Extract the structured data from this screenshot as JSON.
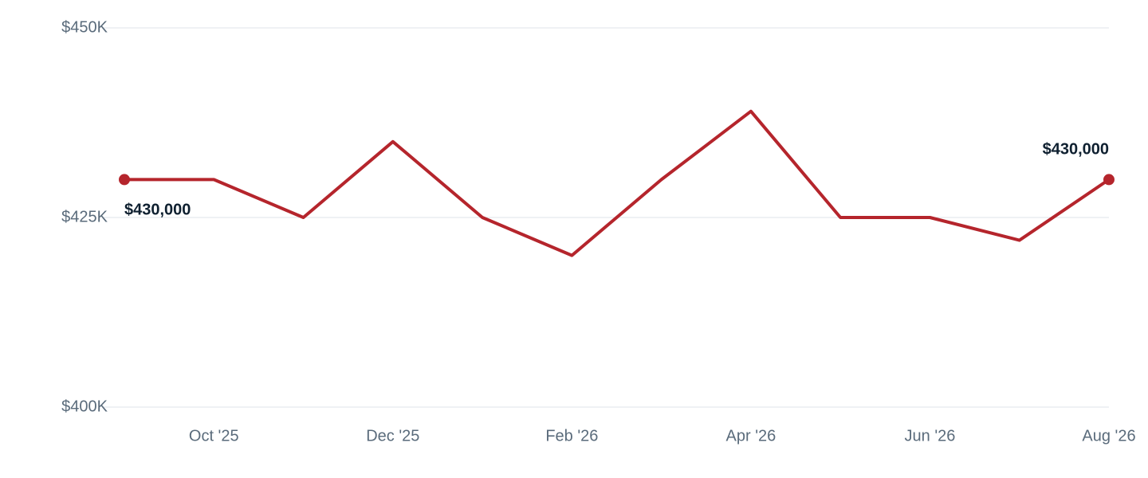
{
  "chart_data": {
    "type": "line",
    "categories": [
      null,
      "Oct '25",
      null,
      "Dec '25",
      null,
      "Feb '26",
      null,
      "Apr '26",
      null,
      "Jun '26",
      null,
      "Aug '26"
    ],
    "series": [
      {
        "name": null,
        "color": "#b5252c",
        "values": [
          430000,
          430000,
          425000,
          435000,
          425000,
          420000,
          430000,
          439000,
          425000,
          425000,
          422000,
          430000
        ],
        "value_labels": [
          "$430,000",
          null,
          null,
          null,
          null,
          null,
          null,
          null,
          null,
          null,
          null,
          "$430,000"
        ]
      }
    ],
    "ylim": [
      400000,
      450000
    ],
    "yticks": [
      {
        "value": 400000,
        "label": "$400K"
      },
      {
        "value": 425000,
        "label": "$425K"
      },
      {
        "value": 450000,
        "label": "$450K"
      }
    ],
    "grid": true
  }
}
